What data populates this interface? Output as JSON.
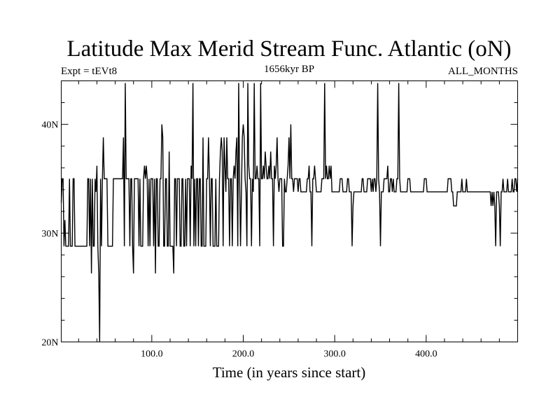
{
  "chart_data": {
    "type": "line",
    "title": "Latitude Max Merid Stream Func. Atlantic (oN)",
    "subtitle_left": "Expt = tEVt8",
    "subtitle_center": "1656kyr BP",
    "subtitle_right": "ALL_MONTHS",
    "xlabel": "Time (in years since start)",
    "ylabel": "",
    "xlim": [
      1,
      500
    ],
    "ylim": [
      20,
      44
    ],
    "x_ticks": [
      {
        "value": 100,
        "label": "100.0"
      },
      {
        "value": 200,
        "label": "200.0"
      },
      {
        "value": 300,
        "label": "300.0"
      },
      {
        "value": 400,
        "label": "400.0"
      }
    ],
    "y_ticks": [
      {
        "value": 20,
        "label": "20N"
      },
      {
        "value": 30,
        "label": "30N"
      },
      {
        "value": 40,
        "label": "40N"
      }
    ],
    "grid": false,
    "series": [
      {
        "values": [
          32.8,
          35.0,
          35.0,
          28.8,
          31.2,
          28.8,
          28.8,
          28.8,
          28.8,
          35.0,
          28.8,
          28.8,
          28.8,
          35.0,
          35.0,
          28.8,
          28.8,
          28.8,
          28.8,
          28.8,
          28.8,
          28.8,
          28.8,
          28.8,
          28.8,
          28.8,
          28.8,
          28.8,
          28.8,
          35.0,
          35.0,
          28.8,
          35.0,
          26.3,
          35.0,
          28.8,
          28.8,
          35.0,
          33.8,
          36.2,
          28.8,
          26.3,
          20.0,
          35.0,
          28.8,
          35.0,
          38.8,
          35.0,
          35.0,
          35.0,
          35.0,
          28.8,
          28.8,
          28.8,
          28.8,
          28.8,
          28.8,
          35.0,
          35.0,
          35.0,
          35.0,
          35.0,
          35.0,
          35.0,
          35.0,
          35.0,
          35.0,
          35.0,
          38.8,
          28.8,
          43.8,
          35.0,
          35.0,
          35.0,
          35.0,
          28.8,
          35.0,
          35.0,
          28.8,
          26.3,
          35.0,
          35.0,
          35.0,
          35.0,
          35.0,
          28.8,
          35.0,
          28.8,
          28.8,
          28.8,
          35.0,
          36.2,
          35.0,
          36.2,
          35.0,
          28.8,
          35.0,
          28.8,
          35.0,
          35.0,
          35.0,
          28.8,
          35.0,
          26.3,
          35.0,
          35.0,
          28.8,
          28.8,
          35.0,
          35.0,
          40.0,
          38.8,
          28.8,
          28.8,
          35.0,
          35.0,
          28.8,
          28.8,
          37.5,
          28.8,
          28.8,
          28.8,
          28.8,
          26.3,
          35.0,
          35.0,
          28.8,
          35.0,
          35.0,
          35.0,
          28.8,
          28.8,
          35.0,
          35.0,
          28.8,
          28.8,
          35.0,
          28.8,
          35.0,
          35.0,
          35.0,
          28.8,
          36.2,
          35.0,
          43.8,
          28.8,
          35.0,
          28.8,
          35.0,
          35.0,
          28.8,
          35.0,
          35.0,
          28.8,
          28.8,
          38.8,
          28.8,
          28.8,
          28.8,
          35.0,
          35.0,
          38.8,
          35.0,
          28.8,
          35.0,
          35.0,
          28.8,
          28.8,
          28.8,
          35.0,
          28.8,
          28.8,
          28.8,
          35.0,
          37.5,
          38.8,
          37.5,
          28.8,
          38.8,
          36.2,
          33.8,
          38.8,
          35.0,
          35.0,
          28.8,
          35.0,
          35.0,
          28.8,
          35.0,
          36.2,
          35.0,
          37.5,
          38.8,
          28.8,
          43.8,
          35.0,
          28.8,
          33.8,
          38.8,
          40.0,
          38.8,
          35.0,
          33.8,
          28.8,
          43.8,
          36.2,
          35.0,
          35.0,
          28.8,
          35.0,
          33.8,
          43.8,
          35.0,
          35.0,
          36.2,
          35.0,
          35.0,
          28.8,
          43.8,
          35.0,
          35.0,
          36.2,
          35.0,
          37.5,
          36.2,
          35.0,
          35.0,
          36.2,
          35.0,
          37.5,
          35.0,
          35.0,
          28.8,
          36.2,
          35.0,
          36.2,
          38.8,
          35.0,
          33.8,
          35.0,
          35.0,
          35.0,
          28.8,
          28.8,
          35.0,
          33.8,
          33.8,
          35.0,
          36.2,
          38.8,
          35.0,
          40.0,
          35.0,
          35.0,
          33.8,
          35.0,
          35.0,
          35.0,
          35.0,
          33.8,
          35.0,
          35.0,
          33.8,
          33.8,
          33.8,
          33.8,
          33.8,
          33.8,
          33.8,
          35.0,
          35.0,
          36.2,
          33.8,
          33.8,
          28.8,
          35.0,
          35.0,
          36.2,
          35.0,
          33.8,
          33.8,
          33.8,
          33.8,
          33.8,
          33.8,
          35.0,
          35.0,
          35.0,
          43.8,
          35.0,
          36.2,
          35.0,
          35.0,
          36.2,
          35.0,
          36.2,
          33.8,
          33.8,
          33.8,
          33.8,
          33.8,
          33.8,
          33.8,
          33.8,
          33.8,
          35.0,
          35.0,
          35.0,
          33.8,
          33.8,
          33.8,
          33.8,
          33.8,
          35.0,
          35.0,
          33.8,
          33.8,
          33.8,
          28.8,
          32.5,
          33.8,
          33.8,
          33.8,
          33.8,
          33.8,
          33.8,
          33.8,
          33.8,
          33.8,
          35.0,
          35.0,
          33.8,
          33.8,
          33.8,
          33.8,
          35.0,
          35.0,
          35.0,
          35.0,
          33.8,
          35.0,
          33.8,
          35.0,
          35.0,
          33.8,
          35.0,
          43.8,
          35.0,
          33.8,
          28.8,
          33.8,
          33.8,
          33.8,
          35.0,
          35.0,
          35.0,
          35.0,
          36.2,
          33.8,
          33.8,
          35.0,
          35.0,
          33.8,
          35.0,
          33.8,
          33.8,
          33.8,
          35.0,
          35.0,
          43.8,
          35.0,
          33.8,
          33.8,
          33.8,
          33.8,
          33.8,
          33.8,
          33.8,
          33.8,
          35.0,
          35.0,
          35.0,
          33.8,
          33.8,
          33.8,
          33.8,
          33.8,
          33.8,
          33.8,
          33.8,
          33.8,
          33.8,
          33.8,
          33.8,
          33.8,
          33.8,
          33.8,
          35.0,
          35.0,
          35.0,
          33.8,
          33.8,
          33.8,
          33.8,
          33.8,
          33.8,
          33.8,
          33.8,
          33.8,
          33.8,
          33.8,
          33.8,
          33.8,
          33.8,
          33.8,
          33.8,
          33.8,
          33.8,
          33.8,
          33.8,
          33.8,
          33.8,
          33.8,
          35.0,
          35.0,
          35.0,
          35.0,
          33.8,
          33.8,
          32.5,
          32.5,
          32.5,
          32.5,
          33.8,
          33.8,
          33.8,
          33.8,
          33.8,
          35.0,
          33.8,
          33.8,
          33.8,
          33.8,
          35.0,
          33.8,
          33.8,
          33.8,
          33.8,
          33.8,
          33.8,
          33.8,
          33.8,
          33.8,
          33.8,
          33.8,
          33.8,
          33.8,
          33.8,
          33.8,
          33.8,
          33.8,
          33.8,
          33.8,
          33.8,
          33.8,
          33.8,
          33.8,
          33.8,
          33.8,
          33.8,
          32.5,
          33.8,
          32.5,
          33.8,
          32.5,
          28.8,
          33.8,
          33.8,
          33.8,
          32.5,
          28.8,
          33.8,
          33.8,
          35.0,
          33.8,
          33.8,
          33.8,
          33.8,
          35.0,
          33.8,
          33.8,
          33.8,
          33.8,
          35.0,
          33.8,
          33.8,
          35.0,
          35.0,
          33.8,
          35.0
        ]
      }
    ]
  }
}
